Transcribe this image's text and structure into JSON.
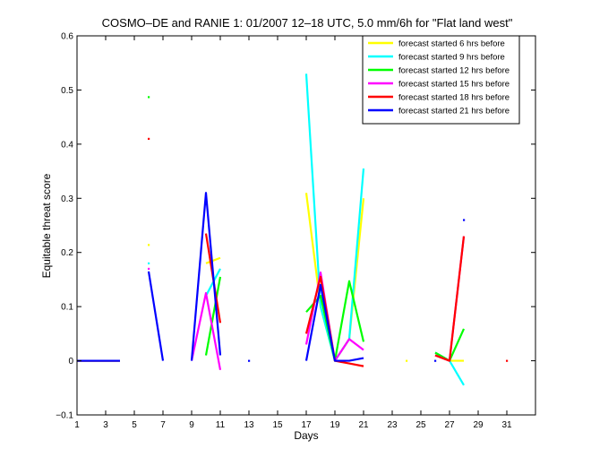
{
  "chart_data": {
    "type": "line",
    "title": "COSMO–DE and RANIE 1: 01/2007 12–18 UTC, 5.0 mm/6h for \"Flat land west\"",
    "xlabel": "Days",
    "ylabel": "Equitable threat score",
    "xlim": [
      1,
      33
    ],
    "ylim": [
      -0.1,
      0.6
    ],
    "xticks": [
      1,
      3,
      5,
      7,
      9,
      11,
      13,
      15,
      17,
      19,
      21,
      23,
      25,
      27,
      29,
      31
    ],
    "yticks": [
      -0.1,
      0,
      0.1,
      0.2,
      0.3,
      0.4,
      0.5,
      0.6
    ],
    "ytick_labels": [
      "−0.1",
      "0",
      "0.1",
      "0.2",
      "0.3",
      "0.4",
      "0.5",
      "0.6"
    ],
    "grid": false,
    "legend_position": "top-right",
    "x": [
      1,
      2,
      3,
      4,
      5,
      6,
      7,
      8,
      9,
      10,
      11,
      12,
      13,
      14,
      15,
      16,
      17,
      18,
      19,
      20,
      21,
      22,
      23,
      24,
      25,
      26,
      27,
      28,
      29,
      30,
      31
    ],
    "series": [
      {
        "name": "forecast started 6 hrs before",
        "color": "#ffff00",
        "values": [
          0,
          0,
          0,
          0,
          null,
          0.214,
          null,
          null,
          null,
          0.18,
          0.19,
          null,
          null,
          null,
          null,
          null,
          0.31,
          0.1,
          0,
          0.04,
          0.3,
          null,
          null,
          0,
          null,
          0.01,
          0,
          0,
          null,
          null,
          null
        ]
      },
      {
        "name": "forecast started 9 hrs before",
        "color": "#00ffff",
        "values": [
          0,
          0,
          0,
          0,
          null,
          0.18,
          null,
          null,
          null,
          0.12,
          0.17,
          null,
          null,
          null,
          null,
          null,
          0.53,
          0.1,
          0,
          0.04,
          0.355,
          null,
          null,
          null,
          null,
          0.015,
          0,
          -0.045,
          null,
          null,
          null
        ]
      },
      {
        "name": "forecast started 12 hrs before",
        "color": "#00ff00",
        "values": [
          0,
          0,
          0,
          0,
          null,
          0.487,
          null,
          null,
          null,
          0.01,
          0.155,
          null,
          null,
          null,
          null,
          null,
          0.09,
          0.12,
          0,
          0.147,
          0.035,
          null,
          null,
          null,
          null,
          0.015,
          0,
          0.059,
          null,
          null,
          null
        ]
      },
      {
        "name": "forecast started 15 hrs before",
        "color": "#ff00ff",
        "values": [
          0,
          0,
          0,
          0,
          null,
          0.17,
          null,
          null,
          0,
          0.125,
          -0.017,
          null,
          null,
          null,
          null,
          null,
          0.03,
          0.163,
          0,
          0.04,
          0.02,
          null,
          null,
          null,
          null,
          0.01,
          0,
          0.23,
          null,
          null,
          null
        ]
      },
      {
        "name": "forecast started 18 hrs before",
        "color": "#ff0000",
        "values": [
          0,
          0,
          0,
          0,
          null,
          0.41,
          null,
          null,
          null,
          0.235,
          0.07,
          null,
          null,
          null,
          null,
          null,
          0.05,
          0.155,
          0,
          -0.005,
          -0.01,
          null,
          null,
          null,
          null,
          0.01,
          0,
          0.23,
          null,
          null,
          0
        ]
      },
      {
        "name": "forecast started 21 hrs before",
        "color": "#0000ff",
        "values": [
          0,
          0,
          0,
          0,
          null,
          0.165,
          0,
          null,
          0,
          0.31,
          0.01,
          null,
          0,
          null,
          null,
          null,
          0,
          0.14,
          0,
          0,
          0.005,
          null,
          null,
          null,
          null,
          0,
          null,
          0.26,
          null,
          null,
          null
        ]
      }
    ]
  }
}
